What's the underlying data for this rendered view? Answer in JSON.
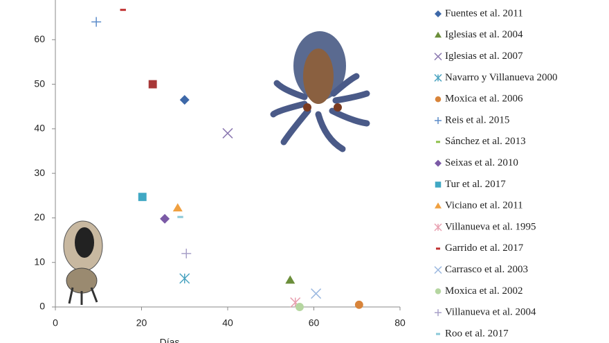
{
  "chart_data": {
    "type": "scatter",
    "x_label": "Días",
    "xlim": [
      0,
      80
    ],
    "xticks": [
      0,
      20,
      40,
      60,
      80
    ],
    "ylim": [
      0,
      70
    ],
    "yticks": [
      0,
      10,
      20,
      30,
      40,
      50,
      60
    ],
    "series": [
      {
        "name": "Fuentes et al. 2011",
        "color": "#3d68a8",
        "marker": "diamond",
        "x": [
          30
        ],
        "values": [
          46.5
        ]
      },
      {
        "name": "Iglesias et al. 2004",
        "color": "#6b8e3a",
        "marker": "triangle",
        "x": [
          54.5
        ],
        "values": [
          6
        ]
      },
      {
        "name": "Iglesias et al. 2007",
        "color": "#8a77b0",
        "marker": "x",
        "x": [
          40
        ],
        "values": [
          39
        ]
      },
      {
        "name": "Navarro y Villanueva  2000",
        "color": "#4aa3c0",
        "marker": "asterisk",
        "x": [
          30
        ],
        "values": [
          6.4
        ]
      },
      {
        "name": "Moxica et al. 2006",
        "color": "#d8843a",
        "marker": "circle",
        "x": [
          70.5
        ],
        "values": [
          0.5
        ]
      },
      {
        "name": "Reis et al. 2015",
        "color": "#5b8bc9",
        "marker": "plus",
        "x": [
          9.5
        ],
        "values": [
          64
        ]
      },
      {
        "name": "Sánchez et al. 2013",
        "color": "#8fbf4a",
        "marker": "dash",
        "x": [],
        "values": []
      },
      {
        "name": "Seixas et al. 2010",
        "color": "#7b5aa6",
        "marker": "diamond",
        "x": [
          25.4
        ],
        "values": [
          19.8
        ]
      },
      {
        "name": "Tur et al. 2017",
        "color": "#40a8c4",
        "marker": "square",
        "x": [
          20.2
        ],
        "values": [
          24.7
        ]
      },
      {
        "name": "Viciano et al. 2011",
        "color": "#f0a040",
        "marker": "triangle",
        "x": [
          28.4
        ],
        "values": [
          22.2
        ]
      },
      {
        "name": "Villanueva et al. 1995",
        "color": "#e8a0b0",
        "marker": "asterisk",
        "x": [
          55.7
        ],
        "values": [
          1
        ]
      },
      {
        "name": "Garrido et al. 2017",
        "color": "#c03030",
        "marker": "dash",
        "x": [
          15.7
        ],
        "values": [
          66.7
        ]
      },
      {
        "name": "Carrasco et al. 2003",
        "color": "#9bb8e0",
        "marker": "x",
        "x": [
          60.5
        ],
        "values": [
          3
        ]
      },
      {
        "name": "Moxica et al. 2002",
        "color": "#b5d6a0",
        "marker": "circle",
        "x": [
          56.7
        ],
        "values": [
          0
        ]
      },
      {
        "name": "Villanueva et al. 2004",
        "color": "#a8a0c8",
        "marker": "plus",
        "x": [
          30.4
        ],
        "values": [
          12
        ]
      },
      {
        "name": "Roo et al. 2017",
        "color": "#8ac8d8",
        "marker": "dash",
        "x": [
          29
        ],
        "values": [
          20.2
        ]
      },
      {
        "color": "#a83838",
        "marker": "square",
        "x": [
          22.6
        ],
        "values": [
          50
        ]
      }
    ]
  }
}
